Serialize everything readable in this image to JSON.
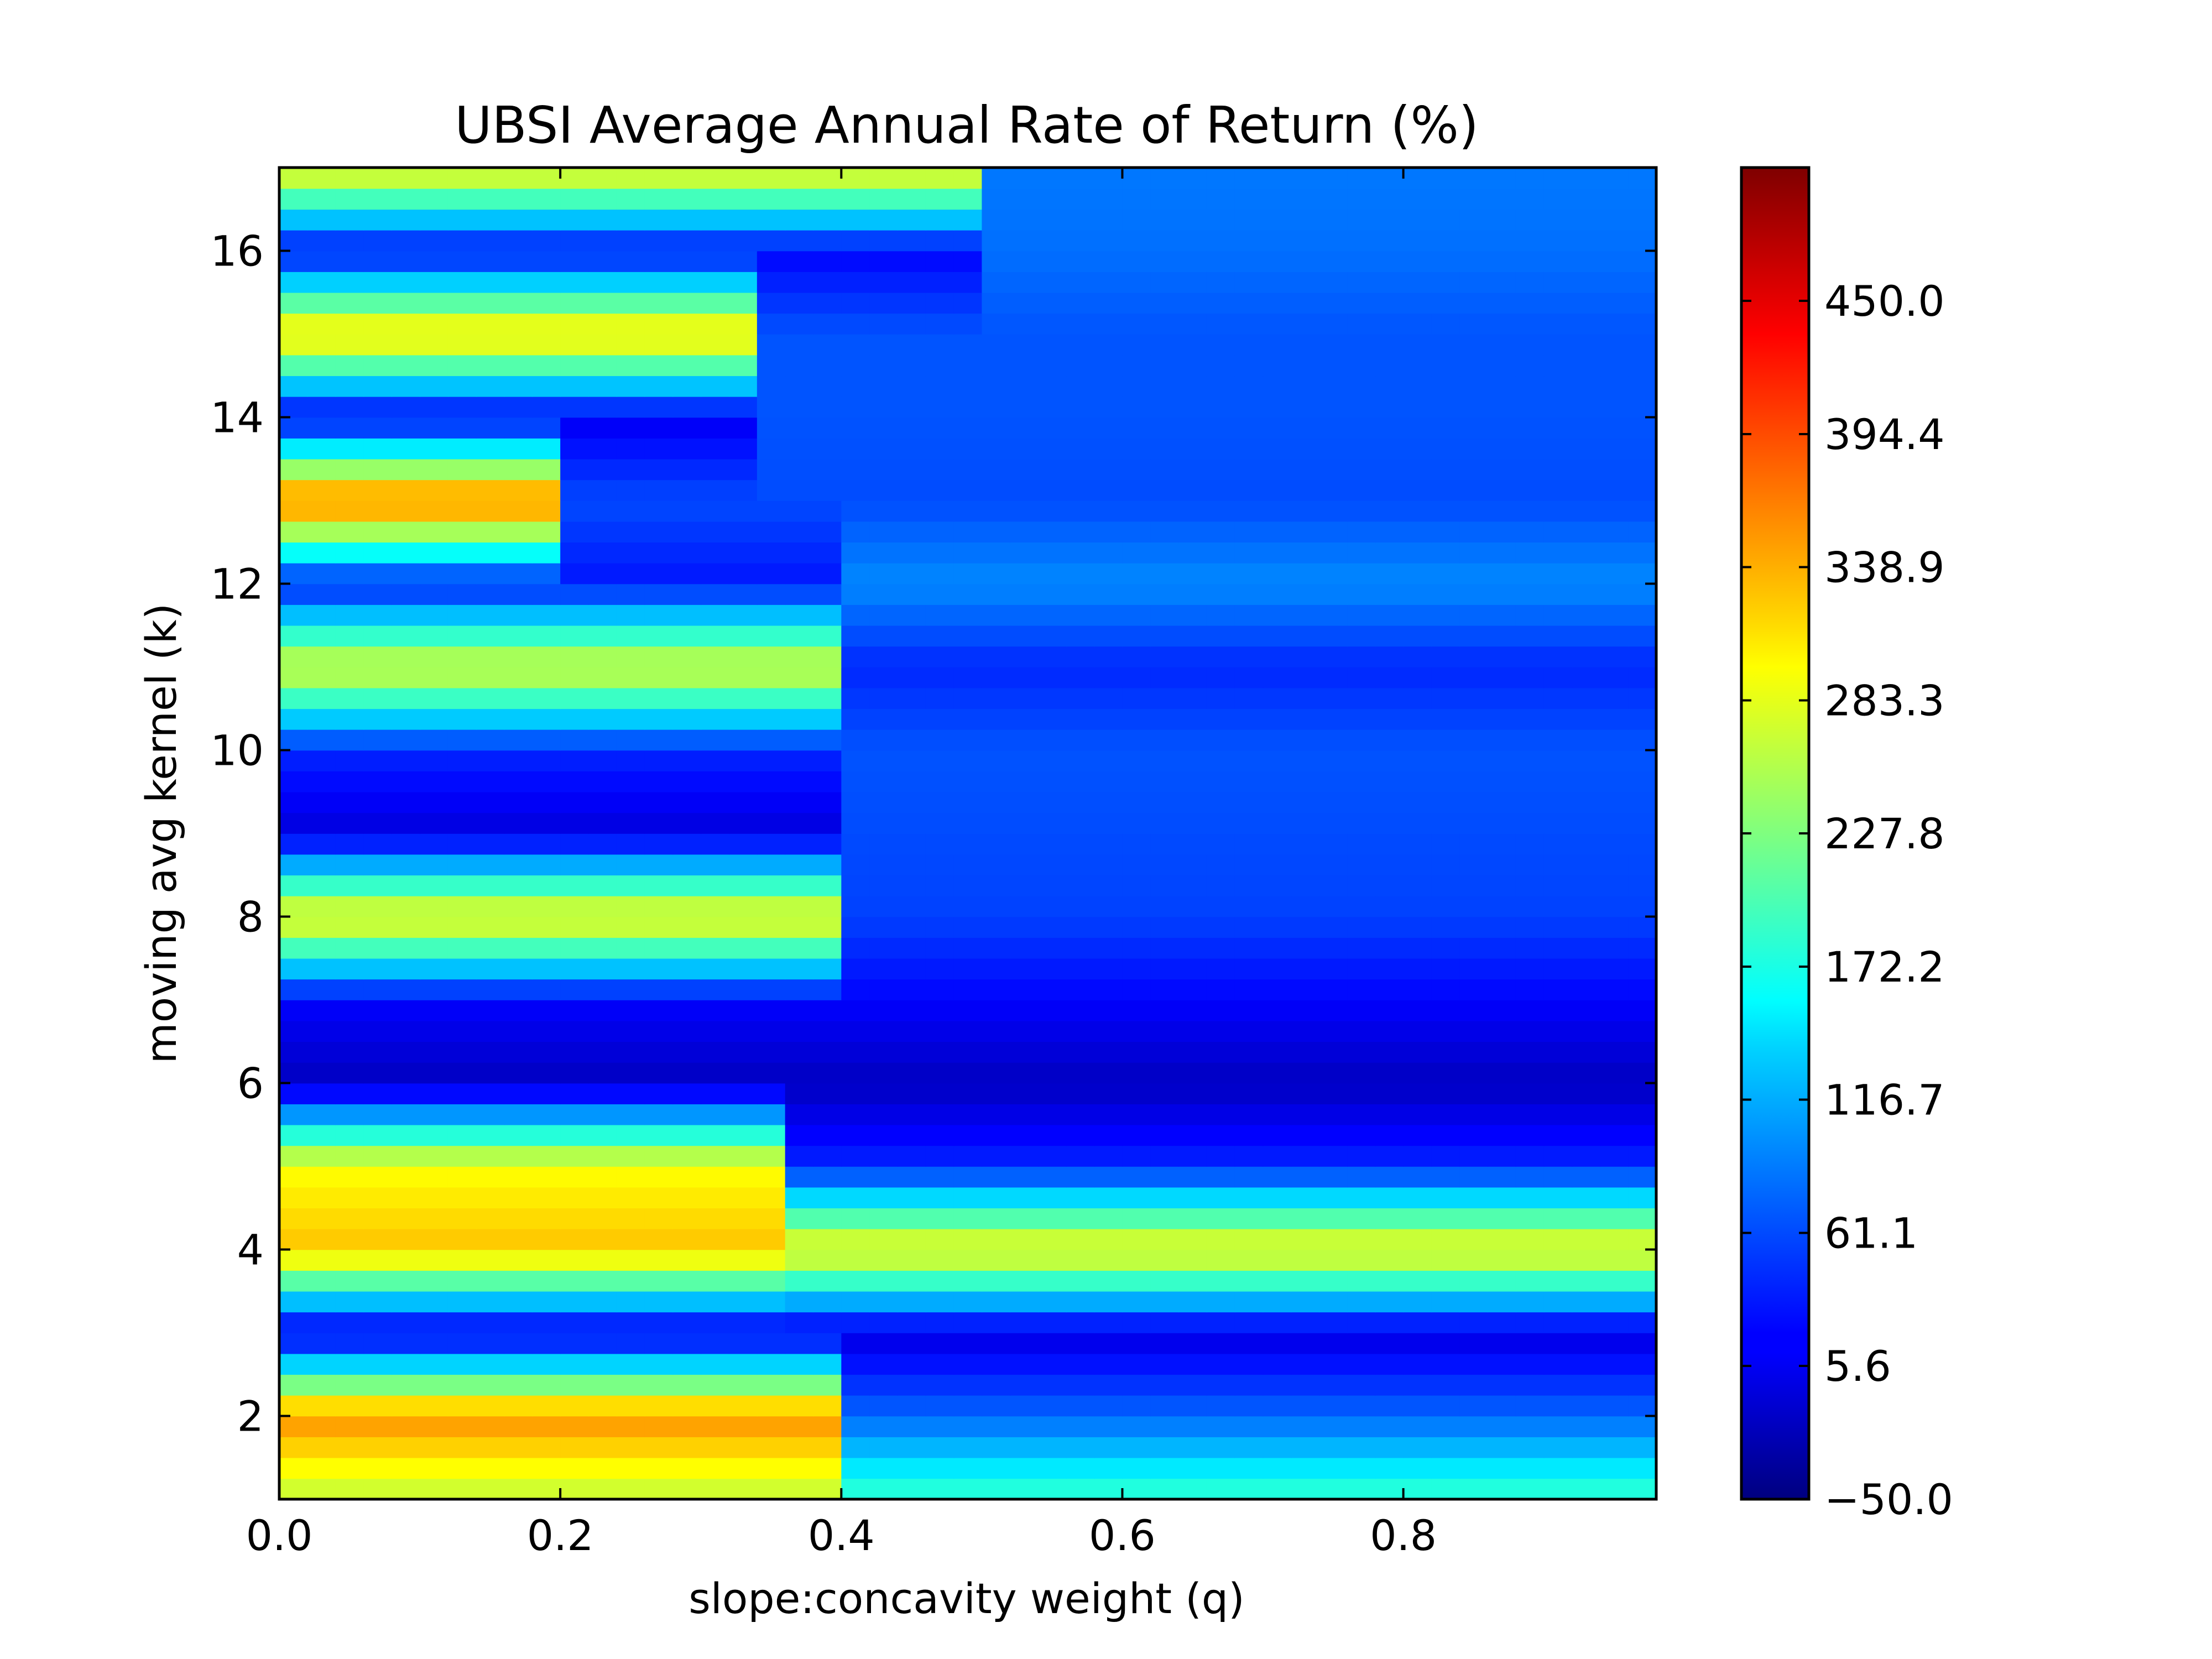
{
  "chart_data": {
    "type": "heatmap",
    "title": "UBSI Average Annual Rate of Return (%)",
    "xlabel": "slope:concavity weight (q)",
    "ylabel": "moving avg kernel (k)",
    "xlim": [
      0.0,
      0.98
    ],
    "ylim": [
      1,
      17
    ],
    "x_ticks": [
      0.0,
      0.2,
      0.4,
      0.6,
      0.8
    ],
    "x_tick_labels": [
      "0.0",
      "0.2",
      "0.4",
      "0.6",
      "0.8"
    ],
    "y_ticks": [
      2,
      4,
      6,
      8,
      10,
      12,
      14,
      16
    ],
    "y_tick_labels": [
      "2",
      "4",
      "6",
      "8",
      "10",
      "12",
      "14",
      "16"
    ],
    "x": [
      0.0,
      0.02,
      0.04,
      0.06,
      0.08,
      0.1,
      0.12,
      0.14,
      0.16,
      0.18,
      0.2,
      0.22,
      0.24,
      0.26,
      0.28,
      0.3,
      0.32,
      0.34,
      0.36,
      0.38,
      0.4,
      0.42,
      0.44,
      0.46,
      0.48,
      0.5,
      0.52,
      0.54,
      0.56,
      0.58,
      0.6,
      0.62,
      0.64,
      0.66,
      0.68,
      0.7,
      0.72,
      0.74,
      0.76,
      0.78,
      0.8,
      0.82,
      0.84,
      0.86,
      0.88,
      0.9,
      0.92,
      0.94,
      0.96,
      0.98
    ],
    "y": [
      1,
      2,
      3,
      4,
      5,
      6,
      7,
      8,
      9,
      10,
      11,
      12,
      13,
      14,
      15,
      16,
      17
    ],
    "row_profiles": [
      {
        "k": 1,
        "segments": [
          {
            "q_end": 0.41,
            "value": 260
          },
          {
            "q_end": 0.98,
            "value": 190
          }
        ]
      },
      {
        "k": 2,
        "segments": [
          {
            "q_end": 0.41,
            "value": 360
          },
          {
            "q_end": 0.98,
            "value": 75
          }
        ]
      },
      {
        "k": 3,
        "segments": [
          {
            "q_end": 0.98,
            "value": 0
          }
        ]
      },
      {
        "k": 4,
        "segments": [
          {
            "q_end": 0.35,
            "value": 330
          },
          {
            "q_end": 0.98,
            "value": 300
          }
        ]
      },
      {
        "k": 5,
        "segments": [
          {
            "q_end": 0.35,
            "value": 295
          },
          {
            "q_end": 0.98,
            "value": 40
          }
        ]
      },
      {
        "k": 6,
        "segments": [
          {
            "q_end": 0.98,
            "value": -15
          }
        ]
      },
      {
        "k": 7,
        "segments": [
          {
            "q_end": 0.98,
            "value": 20
          }
        ]
      },
      {
        "k": 8,
        "segments": [
          {
            "q_end": 0.41,
            "value": 300
          },
          {
            "q_end": 0.98,
            "value": 55
          }
        ]
      },
      {
        "k": 9,
        "segments": [
          {
            "q_end": 0.41,
            "value": 0
          },
          {
            "q_end": 0.98,
            "value": 60
          }
        ]
      },
      {
        "k": 10,
        "segments": [
          {
            "q_end": 0.41,
            "value": 40
          },
          {
            "q_end": 0.98,
            "value": 65
          }
        ]
      },
      {
        "k": 11,
        "segments": [
          {
            "q_end": 0.41,
            "value": 280
          },
          {
            "q_end": 0.98,
            "value": 40
          }
        ]
      },
      {
        "k": 12,
        "segments": [
          {
            "q_end": 0.41,
            "value": 30
          },
          {
            "q_end": 0.98,
            "value": 95
          }
        ]
      },
      {
        "k": 13,
        "segments": [
          {
            "q_end": 0.21,
            "value": 380
          },
          {
            "q_end": 0.98,
            "value": 60
          }
        ]
      },
      {
        "k": 14,
        "segments": [
          {
            "q_end": 0.33,
            "value": 10
          },
          {
            "q_end": 0.98,
            "value": 65
          }
        ]
      },
      {
        "k": 15,
        "segments": [
          {
            "q_end": 0.33,
            "value": 320
          },
          {
            "q_end": 0.98,
            "value": 65
          }
        ]
      },
      {
        "k": 16,
        "segments": [
          {
            "q_end": 0.5,
            "value": 20
          },
          {
            "q_end": 0.98,
            "value": 80
          }
        ]
      },
      {
        "k": 17,
        "segments": [
          {
            "q_end": 0.5,
            "value": 300
          },
          {
            "q_end": 0.98,
            "value": 85
          }
        ]
      }
    ],
    "colorbar": {
      "colormap": "jet",
      "vmin": -50.0,
      "vmax": 505.6,
      "ticks": [
        -50.0,
        5.6,
        61.1,
        116.7,
        172.2,
        227.8,
        283.3,
        338.9,
        394.4,
        450.0
      ],
      "tick_labels": [
        "−50.0",
        "5.6",
        "61.1",
        "116.7",
        "172.2",
        "227.8",
        "283.3",
        "338.9",
        "394.4",
        "450.0"
      ]
    },
    "grid": false,
    "legend": "none"
  }
}
